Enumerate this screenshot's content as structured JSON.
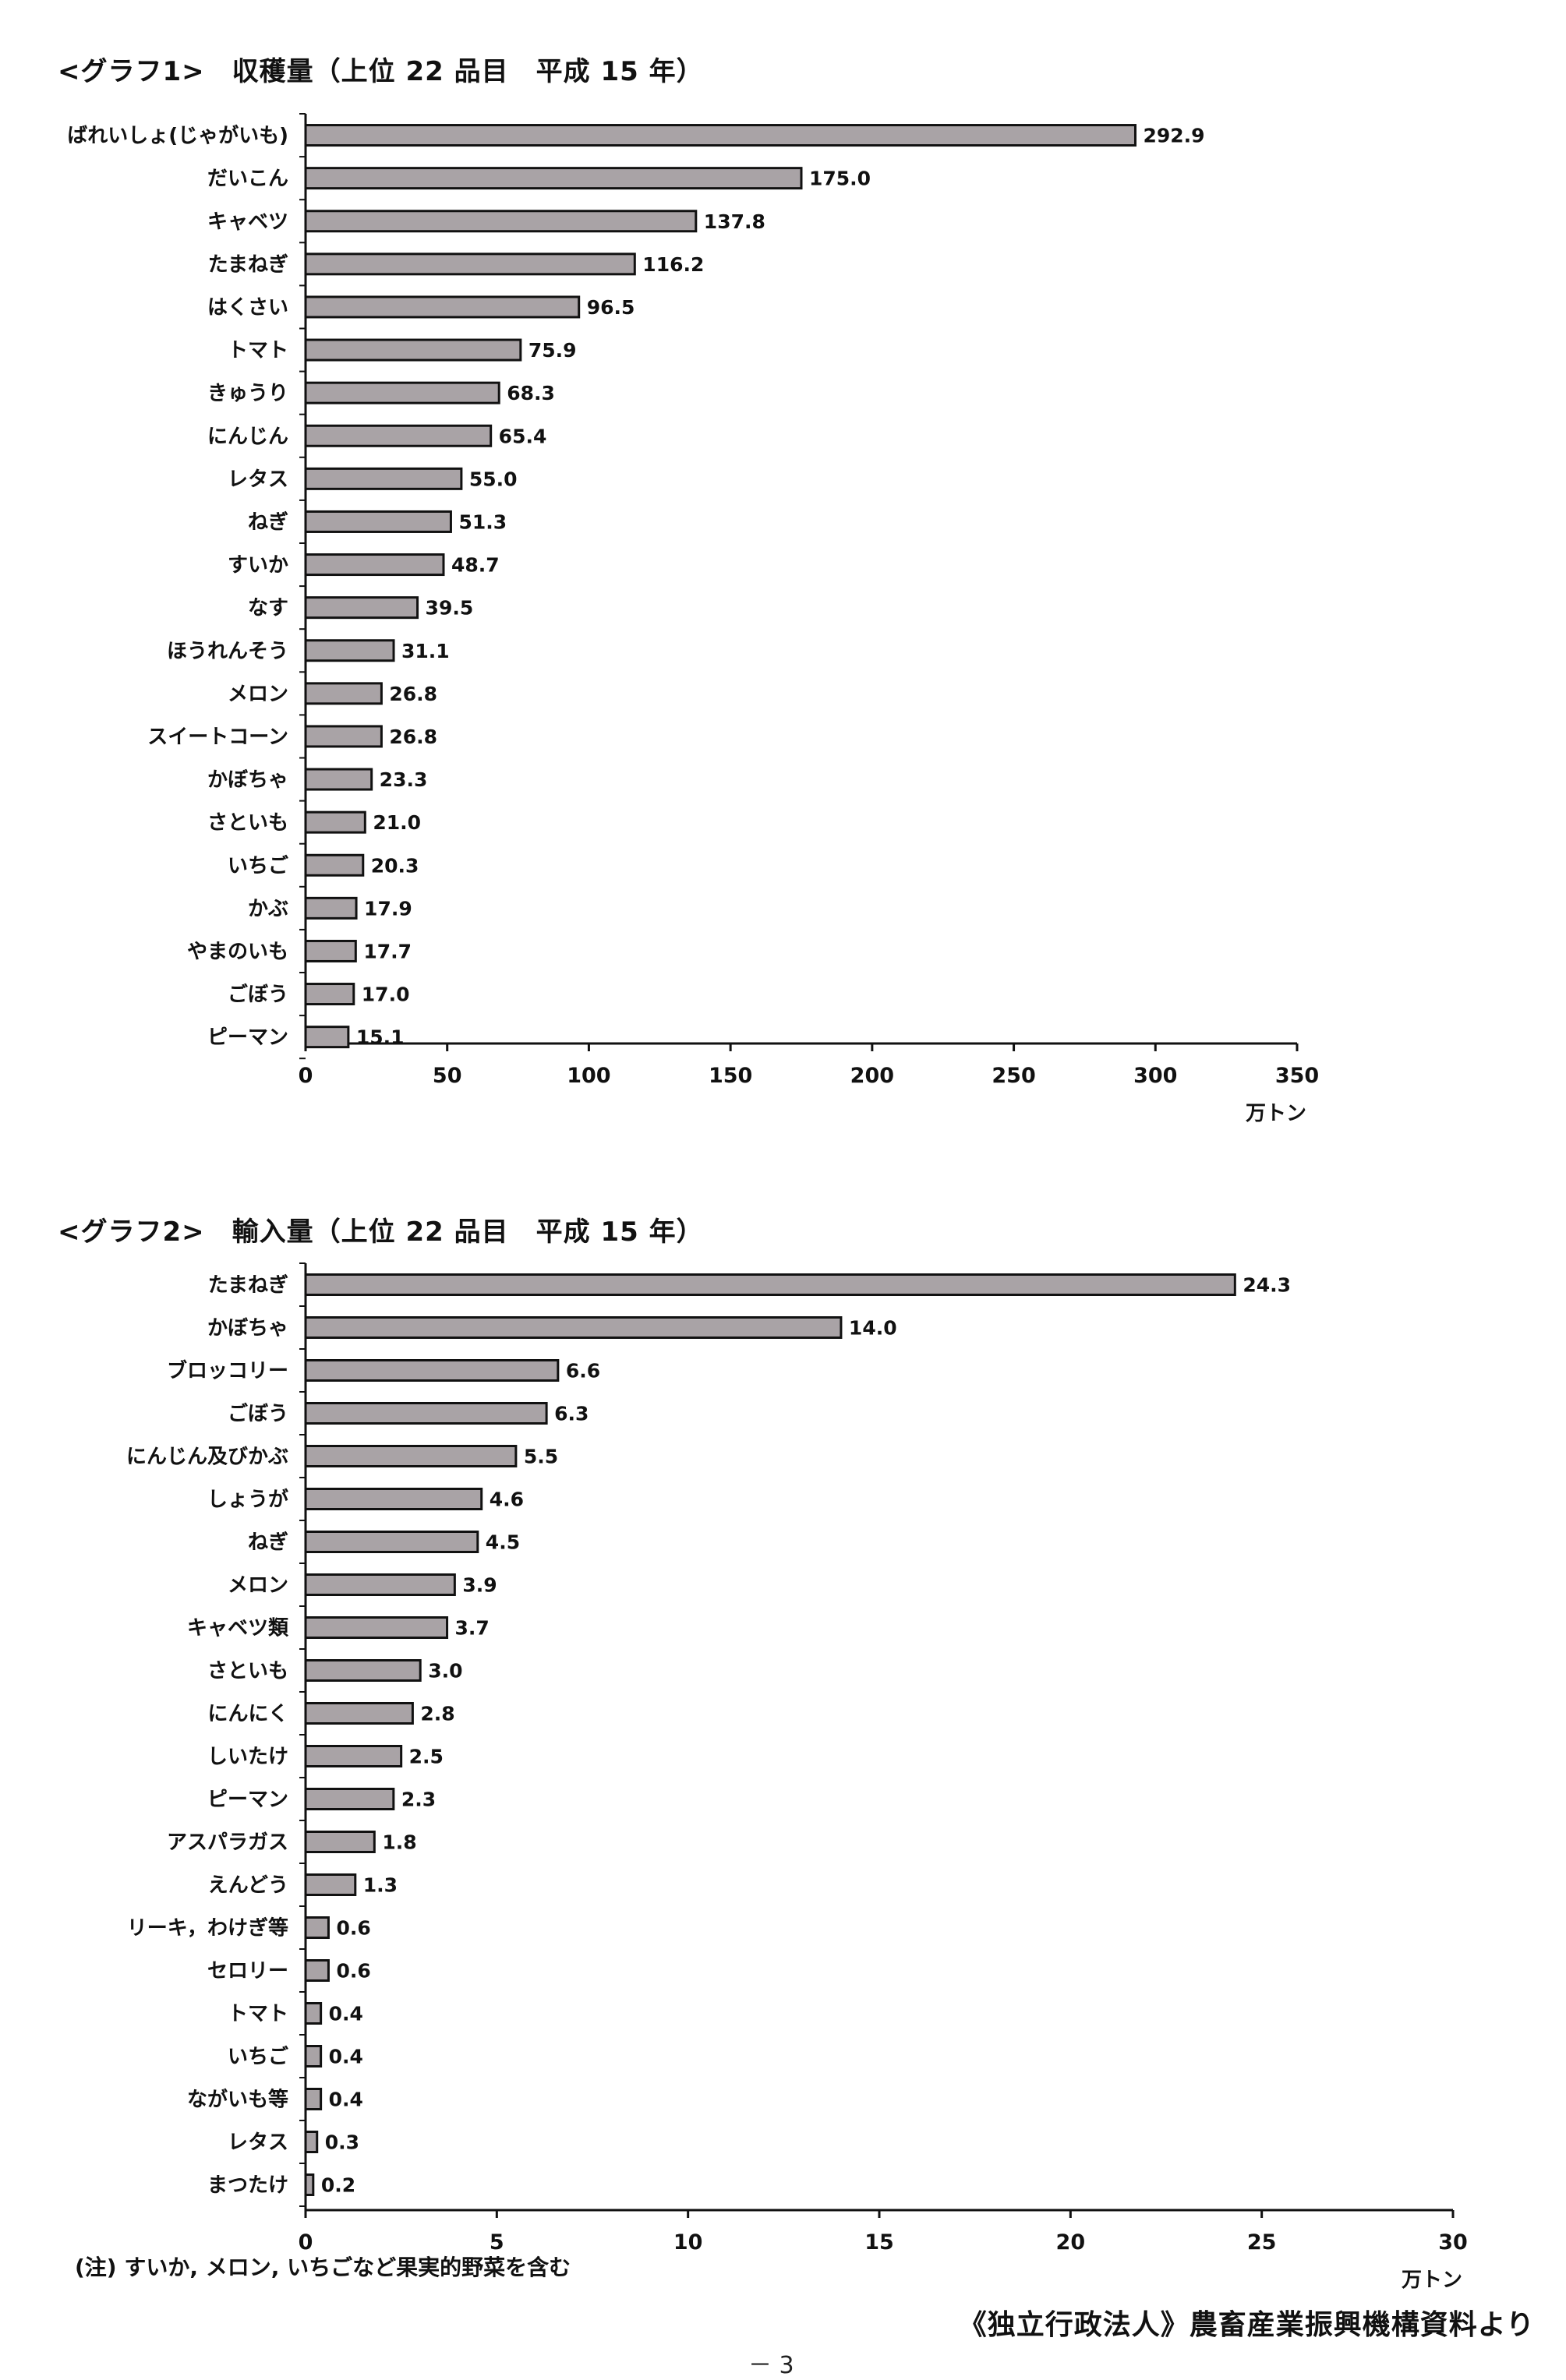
{
  "page": {
    "note": "(注) すいか, メロン, いちごなど果実的野菜を含む",
    "source": "《独立行政法人》農畜産業振興機構資料より",
    "page_mark": "－ 3"
  },
  "colors": {
    "bar_fill": "#a9a3a6",
    "bar_stroke": "#111111",
    "axis": "#111111",
    "text": "#111111"
  },
  "chart_data": [
    {
      "type": "bar",
      "orientation": "horizontal",
      "title": "<グラフ1>　収穫量（上位 22 品目　平成 15 年）",
      "unit_label": "万トン",
      "xlim": [
        0,
        350
      ],
      "xticks": [
        0,
        50,
        100,
        150,
        200,
        250,
        300,
        350
      ],
      "categories": [
        "ばれいしょ(じゃがいも)",
        "だいこん",
        "キャベツ",
        "たまねぎ",
        "はくさい",
        "トマト",
        "きゅうり",
        "にんじん",
        "レタス",
        "ねぎ",
        "すいか",
        "なす",
        "ほうれんそう",
        "メロン",
        "スイートコーン",
        "かぼちゃ",
        "さといも",
        "いちご",
        "かぶ",
        "やまのいも",
        "ごぼう",
        "ピーマン"
      ],
      "values": [
        292.9,
        175.0,
        137.8,
        116.2,
        96.5,
        75.9,
        68.3,
        65.4,
        55.0,
        51.3,
        48.7,
        39.5,
        31.1,
        26.8,
        26.8,
        23.3,
        21.0,
        20.3,
        17.9,
        17.7,
        17.0,
        15.1
      ],
      "value_labels": [
        "292.9",
        "175.0",
        "137.8",
        "116.2",
        "96.5",
        "75.9",
        "68.3",
        "65.4",
        "55.0",
        "51.3",
        "48.7",
        "39.5",
        "31.1",
        "26.8",
        "26.8",
        "23.3",
        "21.0",
        "20.3",
        "17.9",
        "17.7",
        "17.0",
        "15.1"
      ],
      "grid": false
    },
    {
      "type": "bar",
      "orientation": "horizontal",
      "title": "<グラフ2>　輸入量（上位 22 品目　平成 15 年）",
      "unit_label": "万トン",
      "xlim": [
        0,
        30
      ],
      "xticks": [
        0,
        5,
        10,
        15,
        20,
        25,
        30
      ],
      "categories": [
        "たまねぎ",
        "かぼちゃ",
        "ブロッコリー",
        "ごぼう",
        "にんじん及びかぶ",
        "しょうが",
        "ねぎ",
        "メロン",
        "キャベツ類",
        "さといも",
        "にんにく",
        "しいたけ",
        "ピーマン",
        "アスパラガス",
        "えんどう",
        "リーキ，わけぎ等",
        "セロリー",
        "トマト",
        "いちご",
        "ながいも等",
        "レタス",
        "まつたけ"
      ],
      "values": [
        24.3,
        14.0,
        6.6,
        6.3,
        5.5,
        4.6,
        4.5,
        3.9,
        3.7,
        3.0,
        2.8,
        2.5,
        2.3,
        1.8,
        1.3,
        0.6,
        0.6,
        0.4,
        0.4,
        0.4,
        0.3,
        0.2
      ],
      "value_labels": [
        "24.3",
        "14.0",
        "6.6",
        "6.3",
        "5.5",
        "4.6",
        "4.5",
        "3.9",
        "3.7",
        "3.0",
        "2.8",
        "2.5",
        "2.3",
        "1.8",
        "1.3",
        "0.6",
        "0.6",
        "0.4",
        "0.4",
        "0.4",
        "0.3",
        "0.2"
      ],
      "grid": false
    }
  ]
}
